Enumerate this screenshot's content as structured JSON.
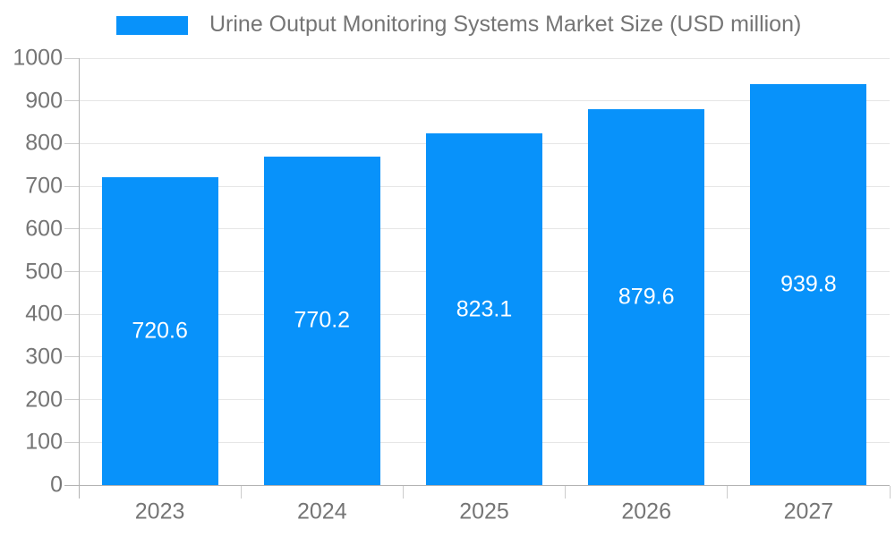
{
  "chart_data": {
    "type": "bar",
    "title": "Urine Output Monitoring Systems Market Size (USD million)",
    "legend_label": "Urine Output Monitoring Systems Market Size (USD million)",
    "legend_position": "top",
    "categories": [
      "2023",
      "2024",
      "2025",
      "2026",
      "2027"
    ],
    "values": [
      720.6,
      770.2,
      823.1,
      879.6,
      939.8
    ],
    "value_labels": [
      "720.6",
      "770.2",
      "823.1",
      "879.6",
      "939.8"
    ],
    "xlabel": "",
    "ylabel": "",
    "ylim": [
      0,
      1000
    ],
    "ytick_step": 100,
    "y_tick_labels": [
      "0",
      "100",
      "200",
      "300",
      "400",
      "500",
      "600",
      "700",
      "800",
      "900",
      "1000"
    ],
    "grid": true,
    "colors": {
      "bar": "#0892fa",
      "bar_label_text": "#ffffff",
      "axis_text": "#757575",
      "title_text": "#757575",
      "gridline": "#e6e6e6",
      "axis_line": "#b3b3b3",
      "tick": "#cccccc",
      "background": "#ffffff"
    }
  }
}
